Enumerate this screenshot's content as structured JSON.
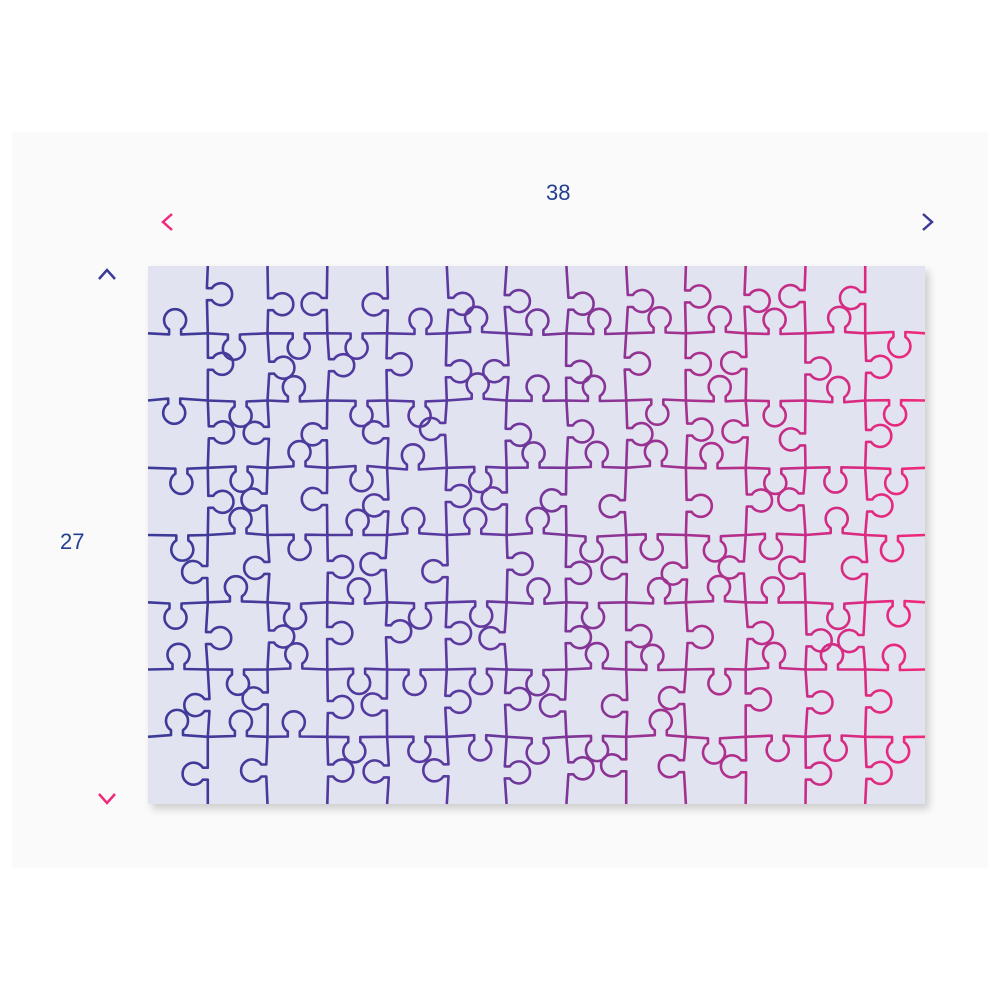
{
  "dimensions": {
    "width_label": "38",
    "height_label": "27"
  },
  "puzzle": {
    "columns": 13,
    "rows": 8,
    "board_color": "#e2e3f1",
    "line_color_start": "#3b3a98",
    "line_color_end": "#f0287c"
  },
  "colors": {
    "label_text": "#23408e",
    "arrow_horizontal_start": "#ee2a7b",
    "arrow_horizontal_end": "#3b3a98",
    "arrow_vertical_start": "#3b3a98",
    "arrow_vertical_end": "#ee2a7b"
  }
}
